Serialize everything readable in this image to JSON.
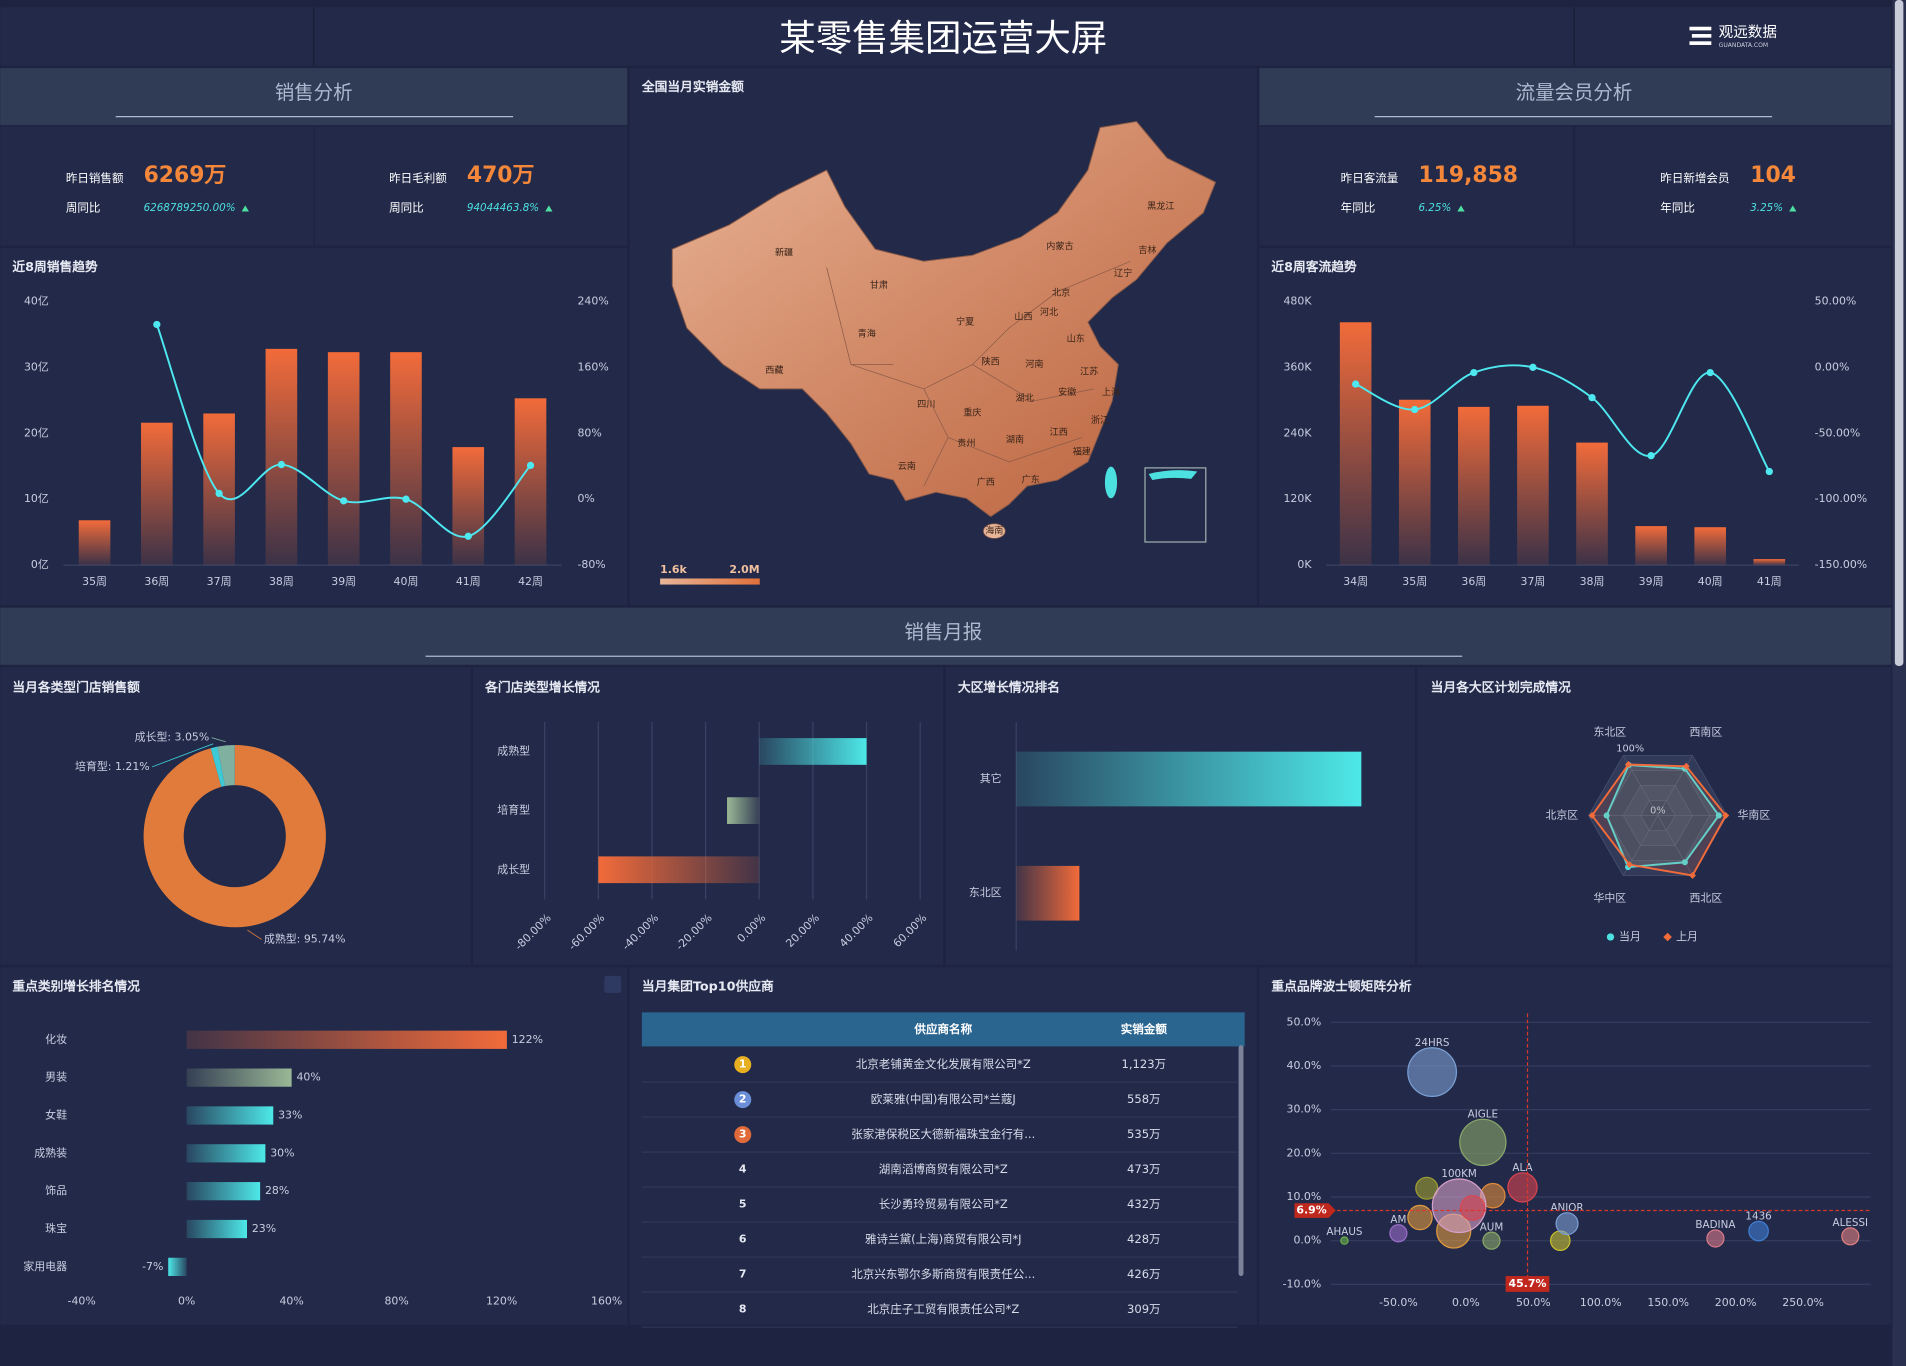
{
  "header": {
    "title": "某零售集团运营大屏",
    "logo": "观远数据",
    "logo_sub": "GUANDATA.COM"
  },
  "sections": [
    "销售分析",
    "流量会员分析",
    "销售月报"
  ],
  "kpis": [
    {
      "label": "昨日销售额",
      "value": "6269万",
      "compare_label": "周同比",
      "compare": "6268789250.00%"
    },
    {
      "label": "昨日毛利额",
      "value": "470万",
      "compare_label": "周同比",
      "compare": "94044463.8%"
    },
    {
      "label": "昨日客流量",
      "value": "119,858",
      "compare_label": "年同比",
      "compare": "6.25%"
    },
    {
      "label": "昨日新增会员",
      "value": "104",
      "compare_label": "年同比",
      "compare": "3.25%"
    }
  ],
  "map": {
    "title": "全国当月实销金额",
    "regions": [
      "新疆",
      "西藏",
      "青海",
      "甘肃",
      "内蒙古",
      "黑龙江",
      "吉林",
      "辽宁",
      "北京",
      "河北",
      "山西",
      "宁夏",
      "陕西",
      "河南",
      "山东",
      "江苏",
      "安徽",
      "湖北",
      "四川",
      "重庆",
      "贵州",
      "湖南",
      "江西",
      "浙江",
      "上海",
      "福建",
      "云南",
      "广西",
      "广东",
      "海南"
    ],
    "legend_min": "1.6k",
    "legend_max": "2.0M",
    "colors": [
      "#e8b598",
      "#e0703a"
    ]
  },
  "table": {
    "title": "当月集团Top10供应商",
    "columns": [
      "供应商名称",
      "实销金额"
    ],
    "rows": [
      [
        1,
        "北京老铺黄金文化发展有限公司*Z",
        "1,123万"
      ],
      [
        2,
        "欧莱雅(中国)有限公司*兰蔻J",
        "558万"
      ],
      [
        3,
        "张家港保税区大德新福珠宝金行有...",
        "535万"
      ],
      [
        4,
        "湖南滔博商贸有限公司*Z",
        "473万"
      ],
      [
        5,
        "长沙勇玲贸易有限公司*Z",
        "432万"
      ],
      [
        6,
        "雅诗兰黛(上海)商贸有限公司*J",
        "428万"
      ],
      [
        7,
        "北京兴东鄂尔多斯商贸有限责任公...",
        "426万"
      ],
      [
        8,
        "北京庄子工贸有限责任公司*Z",
        "309万"
      ]
    ]
  },
  "chart_data": [
    {
      "type": "bar",
      "title": "近8周销售趋势",
      "categories": [
        "35周",
        "36周",
        "37周",
        "38周",
        "39周",
        "40周",
        "41周",
        "42周"
      ],
      "ylim": [
        0,
        40
      ],
      "yticks": [
        {
          "value": 0,
          "label": "0亿"
        },
        {
          "value": 10,
          "label": "10亿"
        },
        {
          "value": 20,
          "label": "20亿"
        },
        {
          "value": 30,
          "label": "30亿"
        },
        {
          "value": 40,
          "label": "40亿"
        }
      ],
      "y2lim": [
        -80,
        240
      ],
      "y2ticks": [
        {
          "value": -80,
          "label": "-80%"
        },
        {
          "value": 0,
          "label": "0%"
        },
        {
          "value": 80,
          "label": "80%"
        },
        {
          "value": 160,
          "label": "160%"
        },
        {
          "value": 240,
          "label": "240%"
        }
      ],
      "series": [
        {
          "type": "bar",
          "color": "#f26b3a",
          "values": [
            6.8,
            21.6,
            23,
            32.8,
            32.3,
            32.3,
            17.9,
            25.3
          ]
        },
        {
          "type": "line",
          "axis": "y2",
          "color": "#4de8f0",
          "values": [
            null,
            212,
            7,
            42,
            -2,
            0,
            -45,
            41
          ]
        }
      ]
    },
    {
      "type": "bar",
      "title": "近8周客流趋势",
      "categories": [
        "34周",
        "35周",
        "36周",
        "37周",
        "38周",
        "39周",
        "40周",
        "41周"
      ],
      "ylim": [
        0,
        480000
      ],
      "yticks": [
        {
          "value": 0,
          "label": "0K"
        },
        {
          "value": 120000,
          "label": "120K"
        },
        {
          "value": 240000,
          "label": "240K"
        },
        {
          "value": 360000,
          "label": "360K"
        },
        {
          "value": 480000,
          "label": "480K"
        }
      ],
      "y2lim": [
        -150,
        50
      ],
      "y2ticks": [
        {
          "value": -150,
          "label": "-150.00%"
        },
        {
          "value": -100,
          "label": "-100.00%"
        },
        {
          "value": -50,
          "label": "-50.00%"
        },
        {
          "value": 0,
          "label": "0.00%"
        },
        {
          "value": 50,
          "label": "50.00%"
        }
      ],
      "series": [
        {
          "type": "bar",
          "color": "#f26b3a",
          "values": [
            442000,
            301000,
            288000,
            290000,
            223000,
            71000,
            69000,
            11000
          ]
        },
        {
          "type": "line",
          "axis": "y2",
          "color": "#4de8f0",
          "values": [
            -12.7,
            -32,
            -4,
            0,
            -23,
            -67,
            -4,
            -79
          ]
        }
      ]
    },
    {
      "type": "pie",
      "title": "当月各类型门店销售额",
      "values": [
        95.74,
        1.21,
        3.05
      ],
      "value_labels": [
        "成熟型: 95.74%",
        "培育型: 1.21%",
        "成长型: 3.05%"
      ],
      "colors": [
        "#e07b3c",
        "#3ec9d6",
        "#7fb0a0"
      ],
      "donut": true
    },
    {
      "type": "hbar",
      "title": "各门店类型增长情况",
      "categories": [
        "成熟型",
        "培育型",
        "成长型"
      ],
      "values": [
        40,
        -12,
        -60
      ],
      "colors": [
        "#4de8e8",
        "#9ab896",
        "#f26b3a"
      ],
      "xlim": [
        -80,
        60
      ],
      "xticks": [
        {
          "value": -80,
          "label": "-80.00%"
        },
        {
          "value": -60,
          "label": "-60.00%"
        },
        {
          "value": -40,
          "label": "-40.00%"
        },
        {
          "value": -20,
          "label": "-20.00%"
        },
        {
          "value": 0,
          "label": "0.00%"
        },
        {
          "value": 20,
          "label": "20.00%"
        },
        {
          "value": 40,
          "label": "40.00%"
        },
        {
          "value": 60,
          "label": "60.00%"
        }
      ],
      "grid": true
    },
    {
      "type": "hbar",
      "title": "大区增长情况排名",
      "categories": [
        "其它",
        "东北区"
      ],
      "values": [
        28.4,
        5.2
      ],
      "colors": [
        "#4de8e8",
        "#f26b3a"
      ],
      "xlim": [
        0,
        30
      ]
    },
    {
      "type": "radar",
      "title": "当月各大区计划完成情况",
      "categories": [
        "东北区",
        "西南区",
        "华南区",
        "西北区",
        "华中区",
        "北京区"
      ],
      "rlim": [
        0,
        100
      ],
      "rticks": [
        {
          "value": 0,
          "label": "0%"
        },
        {
          "value": 100,
          "label": "100%"
        }
      ],
      "series": [
        {
          "name": "当月",
          "color": "#4de0e0",
          "values": [
            84,
            78,
            88,
            78,
            86,
            74
          ]
        },
        {
          "name": "上月",
          "color": "#f26b3a",
          "values": [
            85,
            82,
            98,
            100,
            82,
            95
          ]
        }
      ]
    },
    {
      "type": "hbar",
      "title": "重点类别增长排名情况",
      "categories": [
        "化妆",
        "男装",
        "女鞋",
        "成熟装",
        "饰品",
        "珠宝",
        "家用电器"
      ],
      "values": [
        122,
        40,
        33,
        30,
        28,
        23,
        -7
      ],
      "value_labels": [
        "122%",
        "40%",
        "33%",
        "30%",
        "28%",
        "23%",
        "-7%"
      ],
      "colors": [
        "#f26b3a",
        "#9ab896",
        "#4de8e8",
        "#4de8e8",
        "#4de8e8",
        "#4de8e8",
        "#4de8e8"
      ],
      "xlim": [
        -40,
        160
      ],
      "xticks": [
        {
          "value": -40,
          "label": "-40%"
        },
        {
          "value": 0,
          "label": "0%"
        },
        {
          "value": 40,
          "label": "40%"
        },
        {
          "value": 80,
          "label": "80%"
        },
        {
          "value": 120,
          "label": "120%"
        },
        {
          "value": 160,
          "label": "160%"
        }
      ]
    },
    {
      "type": "scatter",
      "title": "重点品牌波士顿矩阵分析",
      "xlim": [
        -100,
        300
      ],
      "ylim": [
        -12,
        52
      ],
      "xticks": [
        {
          "value": -50,
          "label": "-50.0%"
        },
        {
          "value": 0,
          "label": "0.0%"
        },
        {
          "value": 50,
          "label": "50.0%"
        },
        {
          "value": 100,
          "label": "100.0%"
        },
        {
          "value": 150,
          "label": "150.0%"
        },
        {
          "value": 200,
          "label": "200.0%"
        },
        {
          "value": 250,
          "label": "250.0%"
        }
      ],
      "yticks": [
        {
          "value": -10,
          "label": "-10.0%"
        },
        {
          "value": 0,
          "label": "0.0%"
        },
        {
          "value": 10,
          "label": "10.0%"
        },
        {
          "value": 20,
          "label": "20.0%"
        },
        {
          "value": 30,
          "label": "30.0%"
        },
        {
          "value": 40,
          "label": "40.0%"
        },
        {
          "value": 50,
          "label": "50.0%"
        }
      ],
      "grid": true,
      "ref_x": {
        "value": 45.7,
        "label": "45.7%"
      },
      "ref_y": {
        "value": 6.9,
        "label": "6.9%"
      },
      "points": [
        {
          "name": "24HRS",
          "x": -25,
          "y": 38.6,
          "size": 20,
          "color": "#7b9fd4"
        },
        {
          "name": "AIGLE",
          "x": 12.6,
          "y": 22.5,
          "size": 19,
          "color": "#8aa86a"
        },
        {
          "name": "ALA",
          "x": 42,
          "y": 12.2,
          "size": 12,
          "color": "#d9454f"
        },
        {
          "name": null,
          "x": -29,
          "y": 12,
          "size": 9,
          "color": "#a0a030"
        },
        {
          "name": null,
          "x": -34,
          "y": 5.3,
          "size": 10,
          "color": "#e09a40"
        },
        {
          "name": null,
          "x": -9,
          "y": 2.2,
          "size": 14,
          "color": "#e09a40"
        },
        {
          "name": null,
          "x": 20,
          "y": 10.3,
          "size": 10,
          "color": "#e08a3a"
        },
        {
          "name": "100KM",
          "x": -5,
          "y": 8,
          "size": 22,
          "color": "#d6a0c8"
        },
        {
          "name": null,
          "x": 5,
          "y": 7.5,
          "size": 10,
          "color": "#d9454f"
        },
        {
          "name": "AHAUS",
          "x": -90,
          "y": 0,
          "size": 3,
          "color": "#6ab04c"
        },
        {
          "name": "AM",
          "x": -50,
          "y": 1.7,
          "size": 7,
          "color": "#9a6cc8"
        },
        {
          "name": "AUM",
          "x": 19,
          "y": 0,
          "size": 7,
          "color": "#8aa86a"
        },
        {
          "name": null,
          "x": 70,
          "y": 0,
          "size": 8,
          "color": "#c8c030"
        },
        {
          "name": "ANIOR",
          "x": 75,
          "y": 3.9,
          "size": 9,
          "color": "#7b9fd4"
        },
        {
          "name": "BADINA",
          "x": 185,
          "y": 0.5,
          "size": 7,
          "color": "#d97a8a"
        },
        {
          "name": "1436",
          "x": 217,
          "y": 2.2,
          "size": 8,
          "color": "#3f7fd4"
        },
        {
          "name": "ALESSI",
          "x": 285,
          "y": 1,
          "size": 7,
          "color": "#e08080"
        }
      ]
    }
  ]
}
